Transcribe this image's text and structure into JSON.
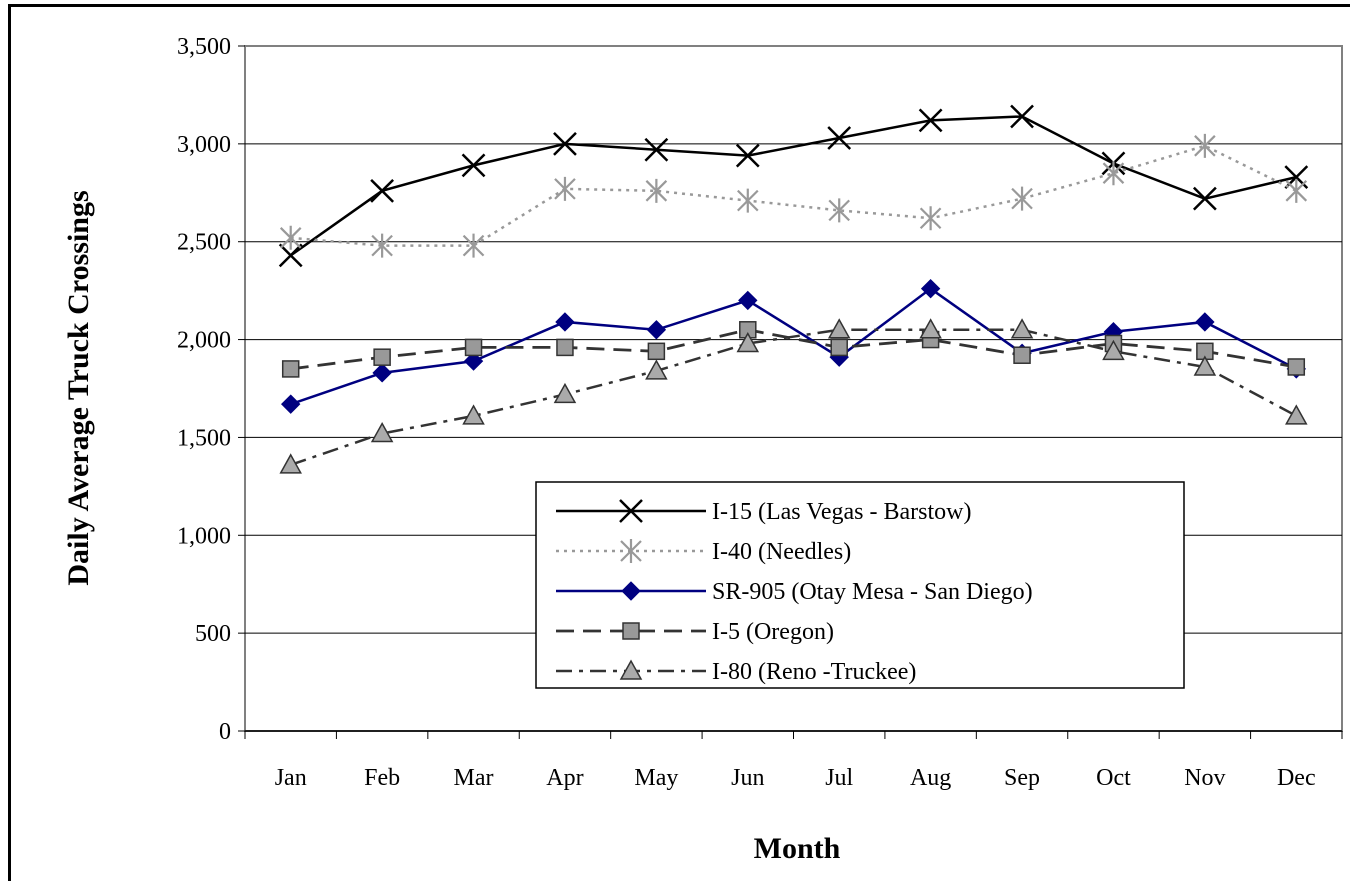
{
  "chart_data": {
    "type": "line",
    "title": "",
    "xlabel": "Month",
    "ylabel": "Daily Average Truck Crossings",
    "ylim": [
      0,
      3500
    ],
    "yticks": [
      "0",
      "500",
      "1,000",
      "1,500",
      "2,000",
      "2,500",
      "3,000",
      "3,500"
    ],
    "ytick_values": [
      0,
      500,
      1000,
      1500,
      2000,
      2500,
      3000,
      3500
    ],
    "categories": [
      "Jan",
      "Feb",
      "Mar",
      "Apr",
      "May",
      "Jun",
      "Jul",
      "Aug",
      "Sep",
      "Oct",
      "Nov",
      "Dec"
    ],
    "grid": "horizontal",
    "legend_position": "lower-right inside plot",
    "series": [
      {
        "name": "I-15 (Las Vegas - Barstow)",
        "values": [
          2430,
          2760,
          2890,
          3000,
          2970,
          2940,
          3030,
          3120,
          3140,
          2900,
          2720,
          2830
        ],
        "color": "#000000",
        "dash": "solid",
        "marker": "x"
      },
      {
        "name": "I-40 (Needles)",
        "values": [
          2520,
          2480,
          2480,
          2770,
          2760,
          2710,
          2660,
          2620,
          2720,
          2850,
          2990,
          2760
        ],
        "color": "#999999",
        "dash": "dotted",
        "marker": "asterisk"
      },
      {
        "name": "SR-905 (Otay Mesa - San Diego)",
        "values": [
          1670,
          1830,
          1890,
          2090,
          2050,
          2200,
          1910,
          2260,
          1930,
          2040,
          2090,
          1850
        ],
        "color": "#000080",
        "dash": "solid",
        "marker": "diamond"
      },
      {
        "name": "I-5 (Oregon)",
        "values": [
          1850,
          1910,
          1960,
          1960,
          1940,
          2050,
          1960,
          2000,
          1920,
          1980,
          1940,
          1860
        ],
        "color": "#333333",
        "dash": "dashed",
        "marker": "square"
      },
      {
        "name": "I-80 (Reno -Truckee)",
        "values": [
          1360,
          1520,
          1610,
          1720,
          1840,
          1980,
          2050,
          2050,
          2050,
          1940,
          1860,
          1610
        ],
        "color": "#333333",
        "dash": "dashdot",
        "marker": "triangle"
      }
    ]
  }
}
